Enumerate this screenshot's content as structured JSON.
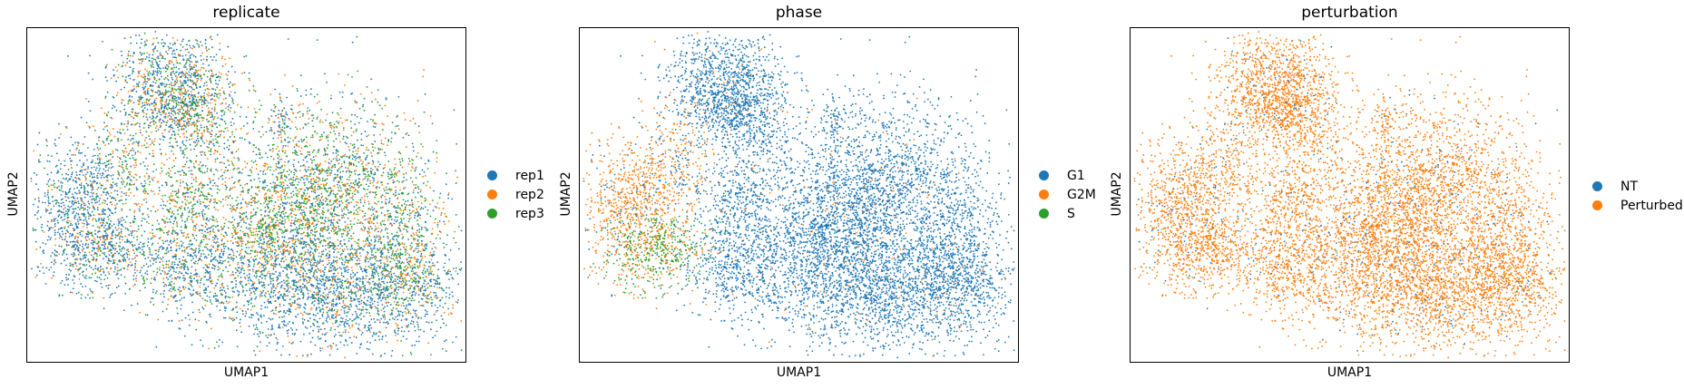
{
  "chart_data": [
    {
      "type": "scatter",
      "title": "replicate",
      "xlabel": "UMAP1",
      "ylabel": "UMAP2",
      "grid": false,
      "legend_position": "right",
      "legend": [
        {
          "name": "rep1",
          "color": "#1f77b4"
        },
        {
          "name": "rep2",
          "color": "#ff7f0e"
        },
        {
          "name": "rep3",
          "color": "#2ca02c"
        }
      ]
    },
    {
      "type": "scatter",
      "title": "phase",
      "xlabel": "UMAP1",
      "ylabel": "UMAP2",
      "grid": false,
      "legend_position": "right",
      "legend": [
        {
          "name": "G1",
          "color": "#1f77b4"
        },
        {
          "name": "G2M",
          "color": "#ff7f0e"
        },
        {
          "name": "S",
          "color": "#2ca02c"
        }
      ]
    },
    {
      "type": "scatter",
      "title": "perturbation",
      "xlabel": "UMAP1",
      "ylabel": "UMAP2",
      "grid": false,
      "legend_position": "right",
      "legend": [
        {
          "name": "NT",
          "color": "#1f77b4"
        },
        {
          "name": "Perturbed",
          "color": "#ff7f0e"
        }
      ]
    }
  ]
}
